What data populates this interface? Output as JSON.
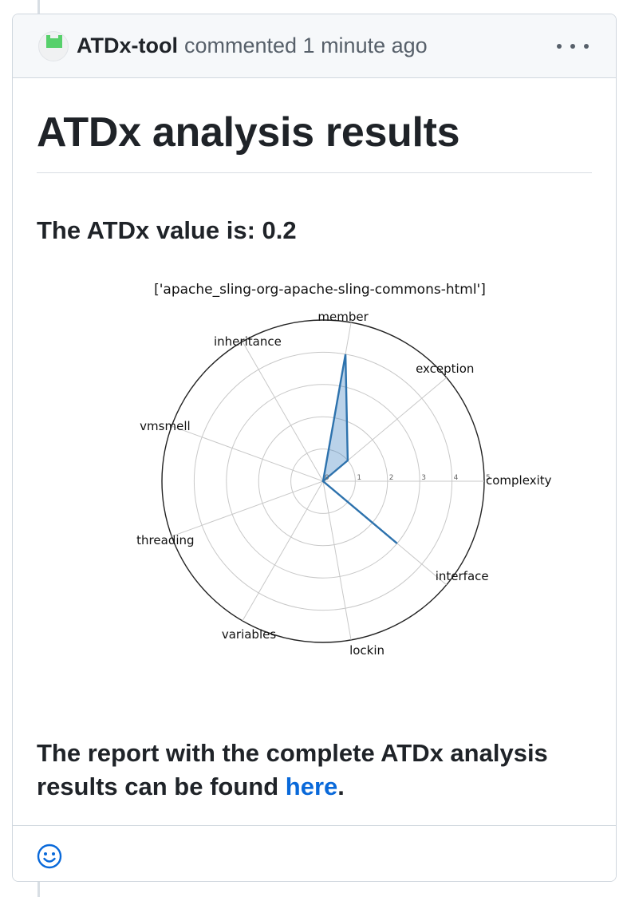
{
  "comment": {
    "author": "ATDx-tool",
    "meta": "commented 1 minute ago"
  },
  "body": {
    "heading": "ATDx analysis results",
    "value_text": "The ATDx value is: 0.2",
    "report_prefix": "The report with the complete ATDx analysis results can be found ",
    "report_link": "here",
    "report_suffix": "."
  },
  "chart_data": {
    "type": "radar",
    "title": "['apache_sling-org-apache-sling-commons-html']",
    "categories": [
      "complexity",
      "exception",
      "member",
      "inheritance",
      "vmsmell",
      "threading",
      "variables",
      "lockin",
      "interface"
    ],
    "values": [
      0,
      1,
      4,
      0,
      0,
      0,
      0,
      0,
      3
    ],
    "rlim": [
      0,
      5
    ],
    "rticks": [
      0,
      1,
      2,
      3,
      4,
      5
    ],
    "fill_color": "#3a7fbf",
    "line_color": "#2d72ad",
    "grid": true
  },
  "colors": {
    "link": "#0969da",
    "header_bg": "#f6f8fa",
    "border": "#d0d7de"
  },
  "icons": {
    "more": "kebab-horizontal-icon",
    "reaction": "smiley-icon"
  }
}
